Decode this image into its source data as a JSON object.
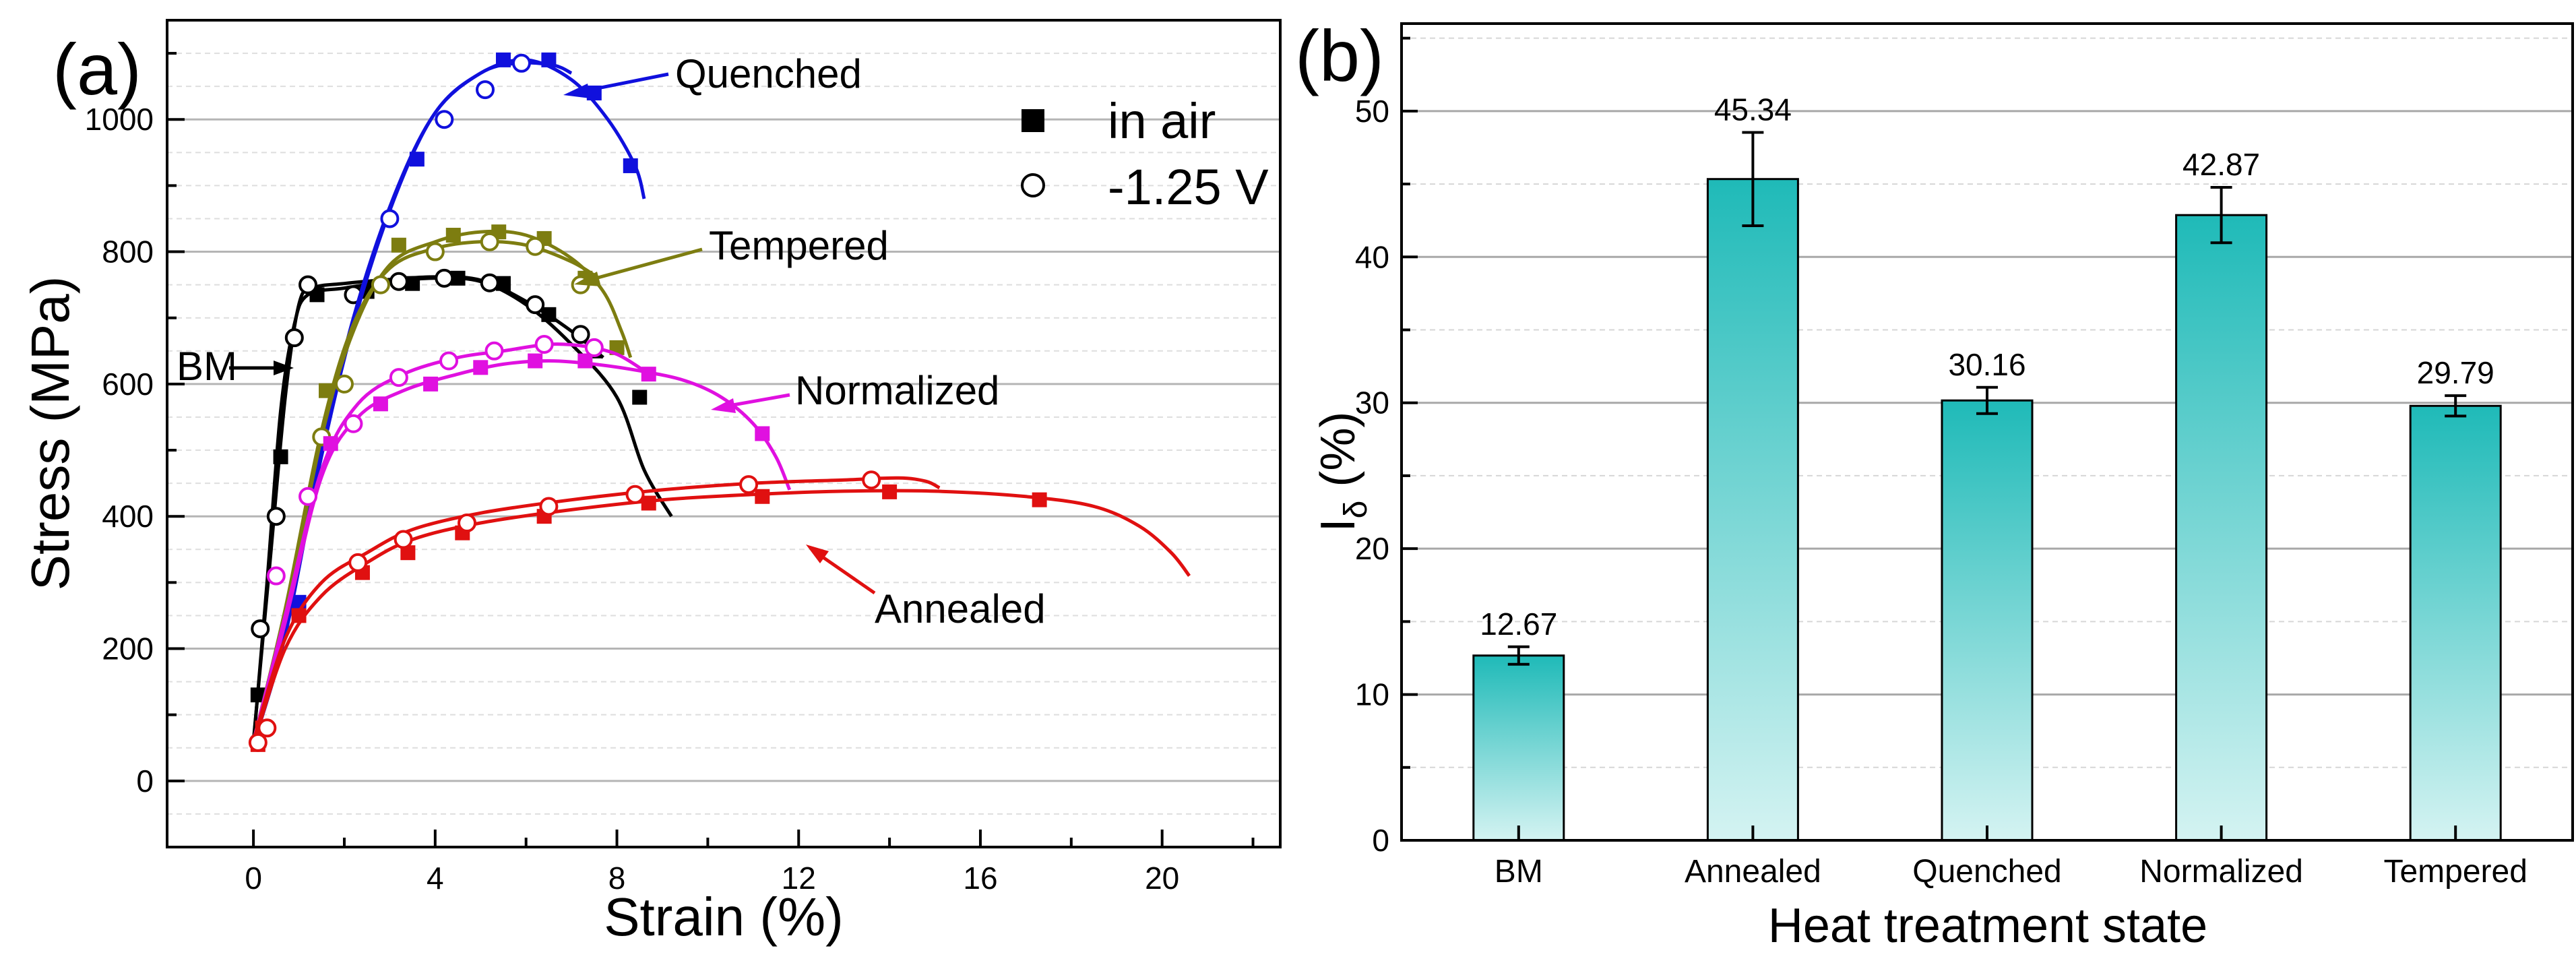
{
  "chart_data": [
    {
      "panel": "(a)",
      "type": "line",
      "xlabel": "Strain (%)",
      "ylabel": "Stress (MPa)",
      "xlim": [
        -1.9,
        22.6
      ],
      "ylim": [
        -100,
        1150
      ],
      "xticks": [
        0,
        4,
        8,
        12,
        16,
        20
      ],
      "yticks": [
        0,
        200,
        400,
        600,
        800,
        1000
      ],
      "grid": true,
      "legend": {
        "position": "top-right",
        "entries": [
          {
            "marker": "filled-square",
            "label": "in air"
          },
          {
            "marker": "open-circle",
            "label": "-1.25 V"
          }
        ]
      },
      "series": [
        {
          "name": "BM",
          "color": "#000000",
          "air": [
            [
              0,
              55
            ],
            [
              0.3,
              300
            ],
            [
              0.6,
              560
            ],
            [
              0.9,
              690
            ],
            [
              1.2,
              735
            ],
            [
              2,
              745
            ],
            [
              3,
              755
            ],
            [
              4,
              760
            ],
            [
              5,
              755
            ],
            [
              6,
              720
            ],
            [
              7,
              660
            ],
            [
              8,
              580
            ],
            [
              8.6,
              470
            ],
            [
              9.2,
              400
            ]
          ],
          "air_markers": [
            [
              0.1,
              130
            ],
            [
              0.6,
              490
            ],
            [
              1.4,
              735
            ],
            [
              2.5,
              740
            ],
            [
              3.5,
              752
            ],
            [
              4.5,
              760
            ],
            [
              5.5,
              752
            ],
            [
              6.5,
              705
            ],
            [
              7.5,
              650
            ],
            [
              8.5,
              580
            ]
          ],
          "voltage": [
            [
              0,
              60
            ],
            [
              0.35,
              320
            ],
            [
              0.7,
              580
            ],
            [
              1.0,
              720
            ],
            [
              1.3,
              745
            ],
            [
              2,
              752
            ],
            [
              3,
              758
            ],
            [
              4,
              762
            ],
            [
              5,
              757
            ],
            [
              6,
              725
            ],
            [
              7,
              680
            ],
            [
              7.7,
              640
            ]
          ],
          "voltage_markers": [
            [
              0.15,
              230
            ],
            [
              0.5,
              400
            ],
            [
              0.9,
              670
            ],
            [
              1.2,
              750
            ],
            [
              2.2,
              735
            ],
            [
              3.2,
              755
            ],
            [
              4.2,
              760
            ],
            [
              5.2,
              753
            ],
            [
              6.2,
              720
            ],
            [
              7.2,
              675
            ]
          ]
        },
        {
          "name": "Quenched",
          "color": "#1010dd",
          "air": [
            [
              0,
              55
            ],
            [
              0.7,
              220
            ],
            [
              1.4,
              460
            ],
            [
              2.2,
              690
            ],
            [
              3.1,
              880
            ],
            [
              4,
              1010
            ],
            [
              5,
              1070
            ],
            [
              6,
              1090
            ],
            [
              7,
              1060
            ],
            [
              7.8,
              1000
            ],
            [
              8.4,
              930
            ],
            [
              8.6,
              880
            ]
          ],
          "air_markers": [
            [
              1.0,
              270
            ],
            [
              3.6,
              940
            ],
            [
              5.5,
              1090
            ],
            [
              6.5,
              1090
            ],
            [
              7.5,
              1040
            ],
            [
              8.3,
              930
            ]
          ],
          "voltage": [
            [
              0,
              60
            ],
            [
              0.7,
              230
            ],
            [
              1.4,
              470
            ],
            [
              2.2,
              700
            ],
            [
              3.1,
              885
            ],
            [
              4,
              1010
            ],
            [
              5,
              1070
            ],
            [
              5.8,
              1085
            ],
            [
              6.6,
              1082
            ],
            [
              7,
              1070
            ]
          ],
          "voltage_markers": [
            [
              3.0,
              850
            ],
            [
              4.2,
              1000
            ],
            [
              5.1,
              1045
            ],
            [
              5.9,
              1085
            ]
          ]
        },
        {
          "name": "Tempered",
          "color": "#7d7d10",
          "air": [
            [
              0,
              55
            ],
            [
              0.7,
              250
            ],
            [
              1.5,
              520
            ],
            [
              2.2,
              680
            ],
            [
              3,
              780
            ],
            [
              4,
              815
            ],
            [
              5,
              830
            ],
            [
              6,
              825
            ],
            [
              7,
              790
            ],
            [
              7.7,
              740
            ],
            [
              8.1,
              680
            ],
            [
              8.3,
              640
            ]
          ],
          "air_markers": [
            [
              1.6,
              590
            ],
            [
              3.2,
              810
            ],
            [
              4.4,
              825
            ],
            [
              5.4,
              830
            ],
            [
              6.4,
              820
            ],
            [
              7.3,
              760
            ],
            [
              8.0,
              655
            ]
          ],
          "voltage": [
            [
              0,
              60
            ],
            [
              0.7,
              260
            ],
            [
              1.5,
              530
            ],
            [
              2.2,
              690
            ],
            [
              3,
              775
            ],
            [
              4,
              805
            ],
            [
              5,
              815
            ],
            [
              6,
              810
            ],
            [
              7,
              785
            ],
            [
              7.6,
              760
            ]
          ],
          "voltage_markers": [
            [
              1.5,
              520
            ],
            [
              2.0,
              600
            ],
            [
              2.8,
              750
            ],
            [
              4.0,
              800
            ],
            [
              5.2,
              815
            ],
            [
              6.2,
              808
            ],
            [
              7.2,
              750
            ]
          ]
        },
        {
          "name": "Normalized",
          "color": "#e010e0",
          "air": [
            [
              0,
              55
            ],
            [
              0.7,
              240
            ],
            [
              1.5,
              460
            ],
            [
              2.3,
              550
            ],
            [
              3.3,
              590
            ],
            [
              4.5,
              615
            ],
            [
              5.5,
              630
            ],
            [
              6.5,
              635
            ],
            [
              7.5,
              630
            ],
            [
              8.5,
              620
            ],
            [
              9.5,
              605
            ],
            [
              10.3,
              580
            ],
            [
              11,
              540
            ],
            [
              11.5,
              490
            ],
            [
              11.8,
              440
            ]
          ],
          "air_markers": [
            [
              1.7,
              510
            ],
            [
              2.8,
              570
            ],
            [
              3.9,
              600
            ],
            [
              5.0,
              625
            ],
            [
              6.2,
              635
            ],
            [
              7.3,
              635
            ],
            [
              8.7,
              615
            ],
            [
              11.2,
              525
            ]
          ],
          "voltage": [
            [
              0,
              60
            ],
            [
              0.7,
              250
            ],
            [
              1.5,
              470
            ],
            [
              2.3,
              570
            ],
            [
              3.3,
              615
            ],
            [
              4.5,
              640
            ],
            [
              5.5,
              650
            ],
            [
              6.5,
              660
            ],
            [
              7.3,
              657
            ],
            [
              8,
              645
            ],
            [
              8.6,
              620
            ]
          ],
          "voltage_markers": [
            [
              0.5,
              310
            ],
            [
              1.2,
              430
            ],
            [
              2.2,
              540
            ],
            [
              3.2,
              610
            ],
            [
              4.3,
              635
            ],
            [
              5.3,
              650
            ],
            [
              6.4,
              660
            ],
            [
              7.5,
              655
            ]
          ]
        },
        {
          "name": "Annealed",
          "color": "#e01010",
          "air": [
            [
              0,
              55
            ],
            [
              0.7,
              200
            ],
            [
              1.5,
              280
            ],
            [
              2.5,
              330
            ],
            [
              3.5,
              365
            ],
            [
              5,
              390
            ],
            [
              7,
              410
            ],
            [
              9,
              425
            ],
            [
              11,
              433
            ],
            [
              13,
              438
            ],
            [
              15,
              438
            ],
            [
              17,
              430
            ],
            [
              18.5,
              415
            ],
            [
              19.5,
              385
            ],
            [
              20.2,
              345
            ],
            [
              20.6,
              310
            ]
          ],
          "air_markers": [
            [
              0.1,
              55
            ],
            [
              0.2,
              80
            ],
            [
              1.0,
              250
            ],
            [
              2.4,
              315
            ],
            [
              3.4,
              345
            ],
            [
              4.6,
              375
            ],
            [
              6.4,
              400
            ],
            [
              8.7,
              420
            ],
            [
              11.2,
              430
            ],
            [
              14,
              437
            ],
            [
              17.3,
              425
            ]
          ],
          "voltage": [
            [
              0,
              60
            ],
            [
              0.7,
              215
            ],
            [
              1.5,
              300
            ],
            [
              2.5,
              345
            ],
            [
              3.5,
              380
            ],
            [
              5,
              405
            ],
            [
              7,
              425
            ],
            [
              9,
              440
            ],
            [
              11,
              450
            ],
            [
              13,
              455
            ],
            [
              14.2,
              458
            ],
            [
              14.8,
              453
            ],
            [
              15.1,
              443
            ]
          ],
          "voltage_markers": [
            [
              0.1,
              58
            ],
            [
              0.3,
              80
            ],
            [
              2.3,
              330
            ],
            [
              3.3,
              365
            ],
            [
              4.7,
              390
            ],
            [
              6.5,
              415
            ],
            [
              8.4,
              433
            ],
            [
              10.9,
              448
            ],
            [
              13.6,
              455
            ]
          ]
        }
      ],
      "annotations": [
        "BM",
        "Quenched",
        "Tempered",
        "Normalized",
        "Annealed"
      ]
    },
    {
      "panel": "(b)",
      "type": "bar",
      "title": "",
      "xlabel": "Heat treatment state",
      "ylabel_main": "I",
      "ylabel_sub": "δ",
      "ylabel_unit": " (%)",
      "ylim": [
        0,
        56
      ],
      "yticks": [
        0,
        10,
        20,
        30,
        40,
        50
      ],
      "grid": true,
      "categories": [
        "BM",
        "Annealed",
        "Quenched",
        "Normalized",
        "Tempered"
      ],
      "values": [
        12.67,
        45.34,
        30.16,
        42.87,
        29.79
      ],
      "labels": [
        "12.67",
        "45.34",
        "30.16",
        "42.87",
        "29.79"
      ],
      "errors": [
        0.6,
        3.2,
        0.9,
        1.9,
        0.7
      ],
      "bar_color_top": "#1fbab8",
      "bar_color_bottom": "#d4f3f2"
    }
  ],
  "colors": {
    "BM": "#000000",
    "Quenched": "#1010dd",
    "Tempered": "#7d7d10",
    "Normalized": "#e010e0",
    "Annealed": "#e01010"
  }
}
